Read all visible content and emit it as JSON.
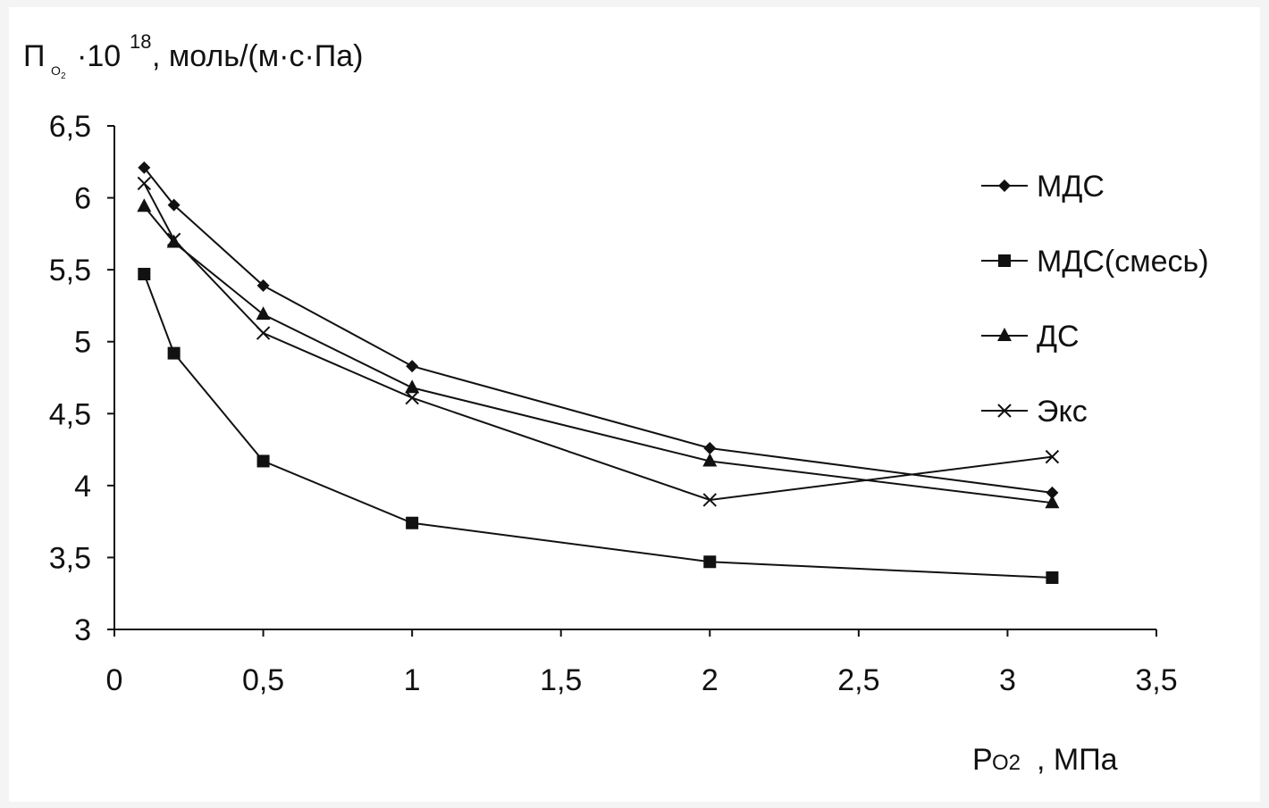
{
  "chart_data": {
    "type": "line",
    "ylabel": {
      "symbol": "П",
      "subscript": "O",
      "subscript2": "2",
      "multiplier": "·10",
      "exponent": "18",
      "units": ", моль/(м·с·Па)"
    },
    "xlabel": {
      "symbol": "P",
      "subscript": "O2",
      "units": ", МПа"
    },
    "xlim": [
      0,
      3.5
    ],
    "ylim": [
      3,
      6.5
    ],
    "xticks": [
      "0",
      "0,5",
      "1",
      "1,5",
      "2",
      "2,5",
      "3",
      "3,5"
    ],
    "yticks": [
      "3",
      "3,5",
      "4",
      "4,5",
      "5",
      "5,5",
      "6",
      "6,5"
    ],
    "grid": false,
    "legend_position": "right",
    "series": [
      {
        "name": "МДС",
        "marker": "diamond",
        "x": [
          0.1,
          0.2,
          0.5,
          1,
          2,
          3.15
        ],
        "y": [
          6.21,
          5.95,
          5.39,
          4.83,
          4.26,
          3.95
        ]
      },
      {
        "name": "МДС(смесь)",
        "marker": "square",
        "x": [
          0.1,
          0.2,
          0.5,
          1,
          2,
          3.15
        ],
        "y": [
          5.47,
          4.92,
          4.17,
          3.74,
          3.47,
          3.36
        ]
      },
      {
        "name": "ДС",
        "marker": "triangle",
        "x": [
          0.1,
          0.2,
          0.5,
          1,
          2,
          3.15
        ],
        "y": [
          5.94,
          5.69,
          5.19,
          4.68,
          4.17,
          3.88
        ]
      },
      {
        "name": "Экс",
        "marker": "cross",
        "x": [
          0.1,
          0.2,
          0.5,
          1,
          2,
          3.15
        ],
        "y": [
          6.1,
          5.71,
          5.06,
          4.61,
          3.9,
          4.2
        ]
      }
    ]
  }
}
